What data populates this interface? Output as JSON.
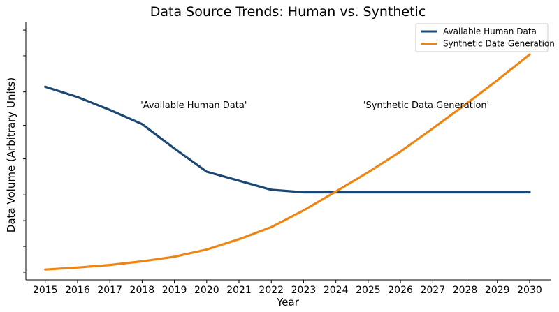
{
  "chart_data": {
    "type": "line",
    "title": "Data Source Trends: Human vs. Synthetic",
    "xlabel": "Year",
    "ylabel": "Data Volume (Arbitrary Units)",
    "x": [
      2015,
      2016,
      2017,
      2018,
      2019,
      2020,
      2021,
      2022,
      2023,
      2024,
      2025,
      2026,
      2027,
      2028,
      2029,
      2030
    ],
    "xlim": [
      2014.4,
      2030.65
    ],
    "ylim": [
      0,
      100
    ],
    "y_tick_values": [
      3,
      13,
      23,
      33,
      47,
      60,
      73,
      87,
      97
    ],
    "grid": false,
    "legend_position": "top-right",
    "series": [
      {
        "name": "Available Human Data",
        "color": "#1b4872",
        "values": [
          75,
          71,
          66,
          60.5,
          51,
          42,
          38.5,
          35,
          34,
          34,
          34,
          34,
          34,
          34,
          34,
          34
        ]
      },
      {
        "name": "Synthetic Data Generation",
        "color": "#ee8513",
        "values": [
          4,
          4.8,
          5.8,
          7.2,
          9,
          11.8,
          15.8,
          20.5,
          27,
          34.3,
          41.8,
          49.8,
          58.8,
          68,
          77.5,
          87.5
        ]
      }
    ],
    "annotations": [
      {
        "text": "'Available Human Data'",
        "x": 2019.6,
        "y": 68
      },
      {
        "text": "'Synthetic Data Generation'",
        "x": 2026.8,
        "y": 68
      }
    ]
  }
}
